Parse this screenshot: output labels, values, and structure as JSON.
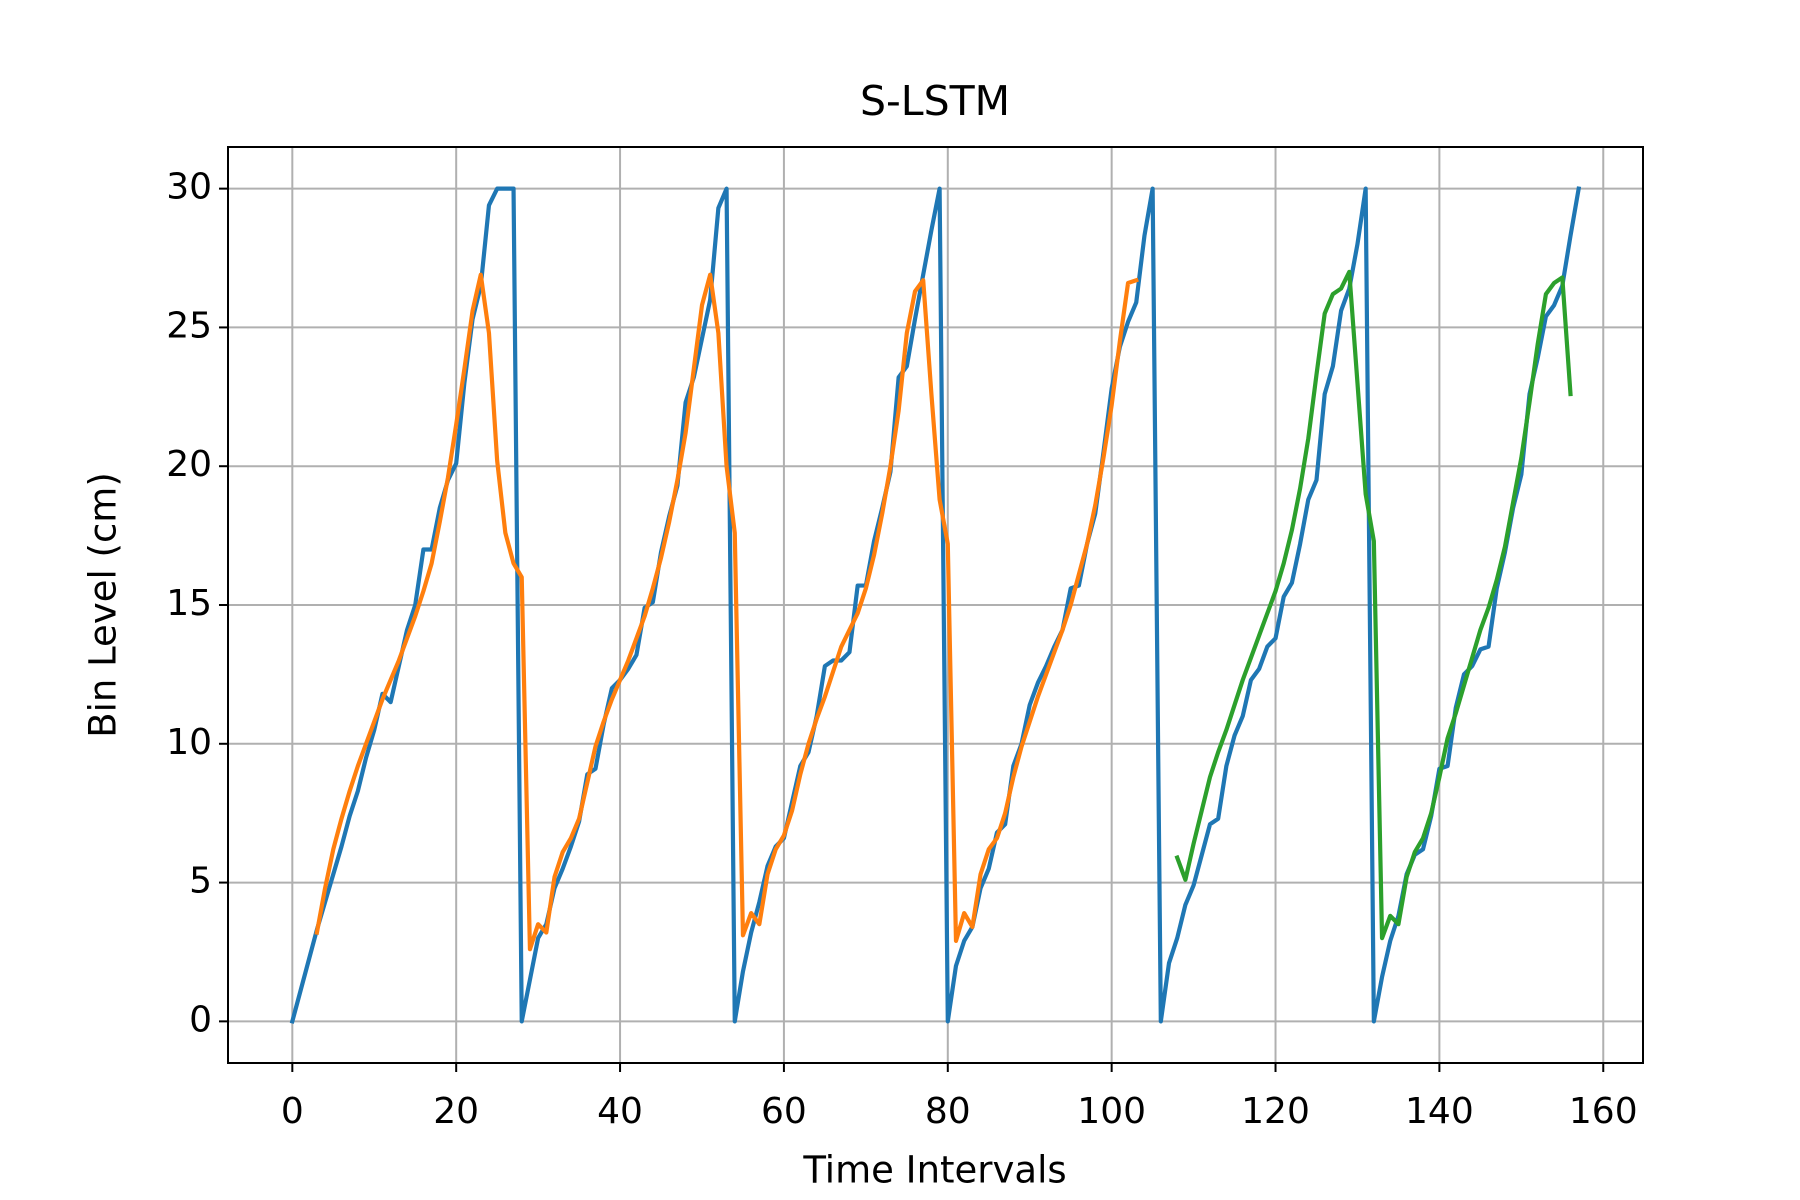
{
  "chart_data": {
    "type": "line",
    "title": "S-LSTM",
    "xlabel": "Time Intervals",
    "ylabel": "Bin Level (cm)",
    "x": [
      0,
      1,
      2,
      3,
      4,
      5,
      6,
      7,
      8,
      9,
      10,
      11,
      12,
      13,
      14,
      15,
      16,
      17,
      18,
      19,
      20,
      21,
      22,
      23,
      24,
      25,
      26,
      27,
      28,
      29,
      30,
      31,
      32,
      33,
      34,
      35,
      36,
      37,
      38,
      39,
      40,
      41,
      42,
      43,
      44,
      45,
      46,
      47,
      48,
      49,
      50,
      51,
      52,
      53,
      54,
      55,
      56,
      57,
      58,
      59,
      60,
      61,
      62,
      63,
      64,
      65,
      66,
      67,
      68,
      69,
      70,
      71,
      72,
      73,
      74,
      75,
      76,
      77,
      78,
      79,
      80,
      81,
      82,
      83,
      84,
      85,
      86,
      87,
      88,
      89,
      90,
      91,
      92,
      93,
      94,
      95,
      96,
      97,
      98,
      99,
      100,
      101,
      102,
      103,
      104,
      105,
      106,
      107,
      108,
      109,
      110,
      111,
      112,
      113,
      114,
      115,
      116,
      117,
      118,
      119,
      120,
      121,
      122,
      123,
      124,
      125,
      126,
      127,
      128,
      129,
      130,
      131,
      132,
      133,
      134,
      135,
      136,
      137,
      138,
      139,
      140,
      141,
      142,
      143,
      144,
      145,
      146,
      147,
      148,
      149,
      150,
      151,
      152,
      153,
      154,
      155,
      156,
      157
    ],
    "series": [
      {
        "color": "#1f77b4",
        "values": [
          0,
          1.1,
          2.2,
          3.3,
          4.3,
          5.3,
          6.3,
          7.4,
          8.3,
          9.5,
          10.5,
          11.8,
          11.5,
          12.8,
          14.1,
          15,
          17,
          17,
          18.5,
          19.5,
          20.1,
          23,
          25.3,
          26.5,
          29.4,
          30,
          30,
          30,
          0,
          1.5,
          3,
          3.5,
          4.8,
          5.5,
          6.3,
          7.2,
          8.9,
          9.1,
          10.7,
          12,
          12.3,
          12.7,
          13.2,
          14.9,
          15.1,
          16.9,
          18.2,
          19.3,
          22.3,
          23.2,
          24.6,
          26,
          29.3,
          30,
          0,
          1.8,
          3.2,
          4.3,
          5.6,
          6.3,
          6.6,
          7.9,
          9.2,
          9.7,
          11,
          12.8,
          13,
          13,
          13.3,
          15.7,
          15.7,
          17.3,
          18.5,
          19.8,
          23.2,
          23.6,
          25.3,
          26.9,
          28.5,
          30,
          0,
          2,
          2.9,
          3.4,
          4.8,
          5.5,
          6.8,
          7.1,
          9.2,
          10,
          11.4,
          12.2,
          12.8,
          13.5,
          14.1,
          15.6,
          15.7,
          17.2,
          18.3,
          20.5,
          22.8,
          24.3,
          25.2,
          25.9,
          28.3,
          30,
          0,
          2.1,
          3,
          4.2,
          4.9,
          6,
          7.1,
          7.3,
          9.2,
          10.3,
          11,
          12.3,
          12.7,
          13.5,
          13.8,
          15.3,
          15.8,
          17.2,
          18.8,
          19.5,
          22.6,
          23.6,
          25.6,
          26.4,
          28,
          30,
          0,
          1.6,
          2.9,
          3.8,
          5.3,
          6,
          6.2,
          7.4,
          9.1,
          9.2,
          11.3,
          12.5,
          12.8,
          13.4,
          13.5,
          15.6,
          16.9,
          18.5,
          19.7,
          22.6,
          23.9,
          25.4,
          25.8,
          26.5,
          28.3,
          30
        ]
      },
      {
        "color": "#ff7f0e",
        "values": [
          null,
          null,
          null,
          3.2,
          4.8,
          6.2,
          7.3,
          8.3,
          9.2,
          10,
          10.8,
          11.6,
          12.3,
          13,
          13.8,
          14.6,
          15.5,
          16.5,
          18,
          19.6,
          21.5,
          23.5,
          25.6,
          26.9,
          24.8,
          20.2,
          17.6,
          16.5,
          16,
          2.6,
          3.5,
          3.2,
          5.2,
          6.1,
          6.6,
          7.3,
          8.6,
          9.9,
          10.8,
          11.6,
          12.3,
          13,
          13.8,
          14.6,
          15.6,
          16.7,
          18,
          19.5,
          21.2,
          23.5,
          25.8,
          26.9,
          24.8,
          20,
          17.6,
          3.1,
          3.9,
          3.5,
          5.3,
          6.2,
          6.7,
          7.6,
          8.9,
          10,
          10.9,
          11.7,
          12.6,
          13.5,
          14.1,
          14.7,
          15.6,
          16.8,
          18.3,
          20,
          22,
          24.8,
          26.3,
          26.7,
          22.6,
          18.8,
          17.2,
          2.9,
          3.9,
          3.4,
          5.3,
          6.2,
          6.6,
          7.5,
          8.8,
          9.9,
          10.8,
          11.7,
          12.5,
          13.3,
          14.1,
          15,
          16.1,
          17.2,
          18.6,
          20.3,
          22.2,
          24.5,
          26.6,
          26.7,
          null,
          null,
          null,
          null,
          null,
          null,
          null,
          null,
          null,
          null,
          null,
          null,
          null,
          null,
          null,
          null,
          null,
          null,
          null,
          null,
          null,
          null,
          null,
          null,
          null,
          null,
          null,
          null,
          null,
          null,
          null,
          null,
          null,
          null,
          null,
          null,
          null,
          null,
          null,
          null,
          null,
          null,
          null,
          null,
          null,
          null,
          null,
          null,
          null,
          null,
          null,
          null,
          null,
          null
        ]
      },
      {
        "color": "#2ca02c",
        "values": [
          null,
          null,
          null,
          null,
          null,
          null,
          null,
          null,
          null,
          null,
          null,
          null,
          null,
          null,
          null,
          null,
          null,
          null,
          null,
          null,
          null,
          null,
          null,
          null,
          null,
          null,
          null,
          null,
          null,
          null,
          null,
          null,
          null,
          null,
          null,
          null,
          null,
          null,
          null,
          null,
          null,
          null,
          null,
          null,
          null,
          null,
          null,
          null,
          null,
          null,
          null,
          null,
          null,
          null,
          null,
          null,
          null,
          null,
          null,
          null,
          null,
          null,
          null,
          null,
          null,
          null,
          null,
          null,
          null,
          null,
          null,
          null,
          null,
          null,
          null,
          null,
          null,
          null,
          null,
          null,
          null,
          null,
          null,
          null,
          null,
          null,
          null,
          null,
          null,
          null,
          null,
          null,
          null,
          null,
          null,
          null,
          null,
          null,
          null,
          null,
          null,
          null,
          null,
          null,
          null,
          null,
          null,
          null,
          5.9,
          5.1,
          6.4,
          7.6,
          8.8,
          9.7,
          10.5,
          11.4,
          12.3,
          13.1,
          13.9,
          14.7,
          15.5,
          16.5,
          17.7,
          19.2,
          21,
          23.3,
          25.5,
          26.2,
          26.4,
          27,
          23,
          19,
          17.3,
          3,
          3.8,
          3.5,
          5.2,
          6.1,
          6.6,
          7.5,
          8.8,
          10.2,
          11.1,
          12.1,
          13.1,
          14.1,
          14.9,
          15.9,
          17.1,
          18.7,
          20.3,
          22.3,
          24.4,
          26.2,
          26.6,
          26.8,
          22.6,
          null
        ]
      }
    ],
    "xlim": [
      -7.85,
      164.85
    ],
    "ylim": [
      -1.5,
      31.5
    ],
    "xticks": [
      0,
      20,
      40,
      60,
      80,
      100,
      120,
      140,
      160
    ],
    "yticks": [
      0,
      5,
      10,
      15,
      20,
      25,
      30
    ],
    "grid": true
  }
}
